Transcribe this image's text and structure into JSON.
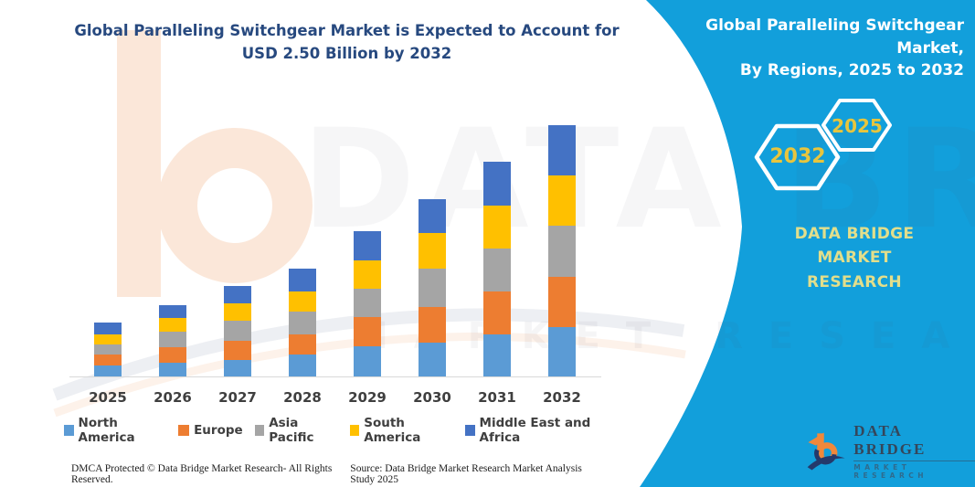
{
  "left_panel": {
    "title": "Global Paralleling Switchgear Market is Expected to Account for USD 2.50 Billion by 2032",
    "footer_dmca": "DMCA Protected © Data Bridge Market Research-  All Rights Reserved.",
    "footer_source": "Source: Data Bridge Market Research  Market Analysis Study 2025"
  },
  "right_panel": {
    "title_line1": "Global Paralleling Switchgear Market,",
    "title_line2": "By Regions, 2025 to 2032",
    "hexagon_big_label": "2032",
    "hexagon_small_label": "2025",
    "brand_line1": "DATA BRIDGE MARKET",
    "brand_line2": "RESEARCH",
    "background_color": "#129fdb",
    "hexagon_label_color": "#e8c53d",
    "brand_text_color": "#e2de8b",
    "logo_name": "DATA BRIDGE",
    "logo_subtitle": "MARKET RESEARCH"
  },
  "watermark": {
    "ghost_text": "DATA BRIDGE",
    "ghost_subtext": "MARKET RESEARCH"
  },
  "chart_data": {
    "type": "bar",
    "stacked": true,
    "title": "Global Paralleling Switchgear Market, By Regions, 2025 to 2032",
    "units": "USD Billion (estimated from bar heights; 2032 total anchored at 2.50)",
    "categories": [
      "2025",
      "2026",
      "2027",
      "2028",
      "2029",
      "2030",
      "2031",
      "2032"
    ],
    "series": [
      {
        "name": "North America",
        "color": "#5b9bd5",
        "values": [
          0.11,
          0.14,
          0.16,
          0.22,
          0.3,
          0.34,
          0.42,
          0.49
        ]
      },
      {
        "name": "Europe",
        "color": "#ed7d31",
        "values": [
          0.11,
          0.15,
          0.19,
          0.2,
          0.29,
          0.35,
          0.43,
          0.5
        ]
      },
      {
        "name": "Asia Pacific",
        "color": "#a5a5a5",
        "values": [
          0.1,
          0.15,
          0.2,
          0.23,
          0.28,
          0.38,
          0.43,
          0.51
        ]
      },
      {
        "name": "South America",
        "color": "#ffc000",
        "values": [
          0.1,
          0.14,
          0.17,
          0.2,
          0.28,
          0.35,
          0.43,
          0.5
        ]
      },
      {
        "name": "Middle East and Africa",
        "color": "#4472c4",
        "values": [
          0.12,
          0.13,
          0.17,
          0.23,
          0.29,
          0.34,
          0.44,
          0.5
        ]
      }
    ],
    "totals": [
      0.54,
      0.71,
      0.89,
      1.08,
      1.44,
      1.76,
      2.15,
      2.5
    ],
    "xlabel": "",
    "ylabel": "",
    "y_axis_visible": false,
    "gridlines": false,
    "legend_position": "bottom"
  }
}
